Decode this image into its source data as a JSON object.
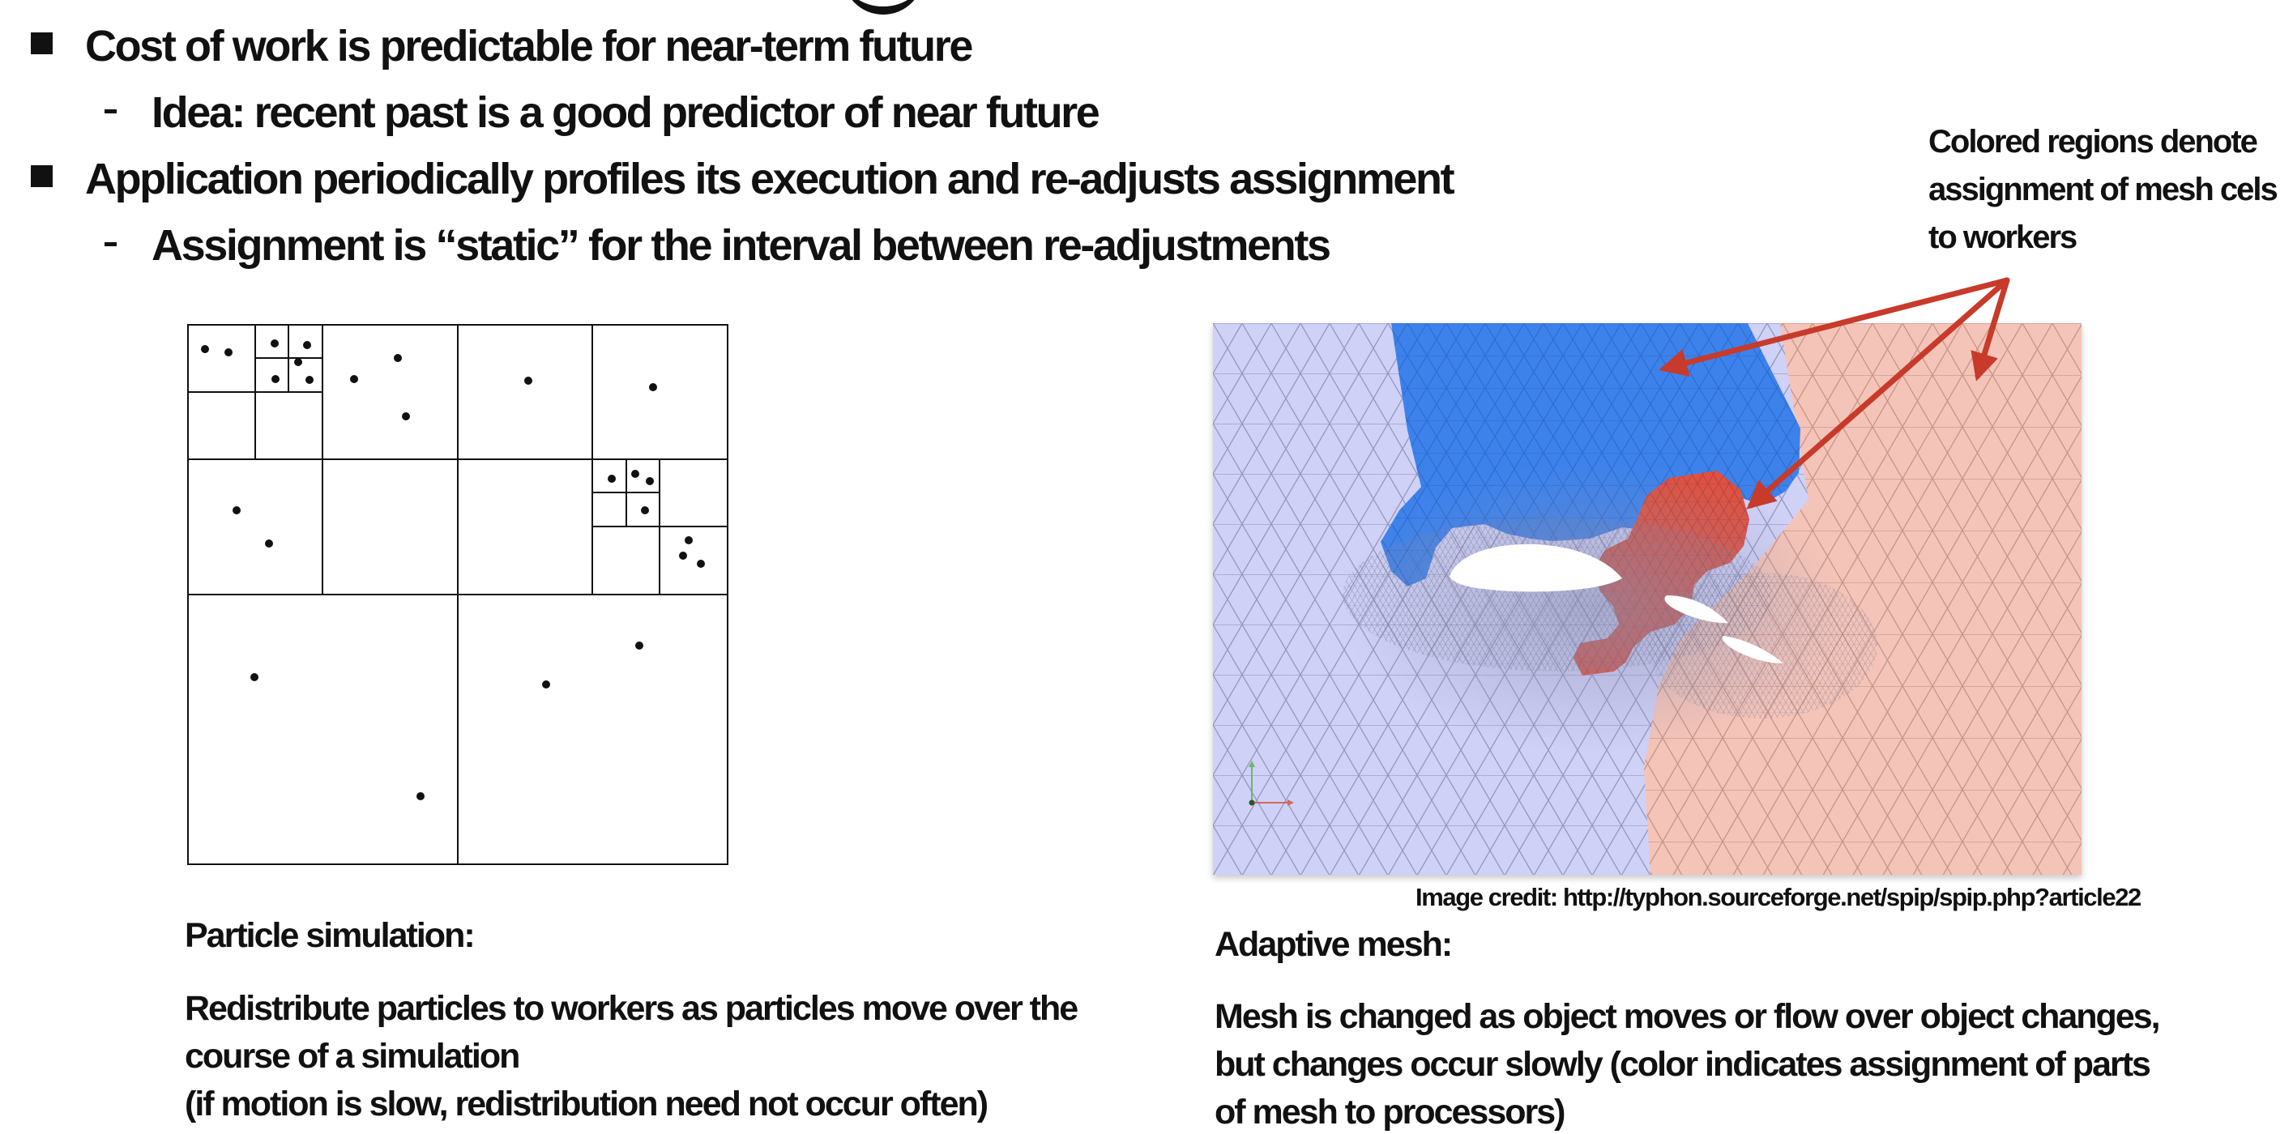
{
  "bullets": [
    {
      "level": 1,
      "text": "Cost of work is predictable for near-term future"
    },
    {
      "level": 2,
      "text": "Idea: recent past is a good predictor of near future"
    },
    {
      "level": 1,
      "text": "Application periodically profiles its execution and re-adjusts assignment"
    },
    {
      "level": 2,
      "text": "Assignment is “static” for the interval between re-adjustments"
    }
  ],
  "mesh_callout": "Colored regions denote\nassignment of mesh cels\nto workers",
  "image_credit": "Image credit: http://typhon.sourceforge.net/spip/spip.php?article22",
  "particle_caption": {
    "heading": "Particle simulation:",
    "lines": [
      "Redistribute particles to workers as particles move over the",
      "course of a simulation",
      "(if motion is slow, redistribution need not occur often)"
    ]
  },
  "mesh_caption": {
    "heading": "Adaptive mesh:",
    "lines": [
      "Mesh is changed as object moves or flow over object changes,",
      "but changes occur slowly (color indicates assignment of parts",
      "of mesh to processors)"
    ]
  },
  "colors": {
    "text": "#111111",
    "blue_region": "#3d82eb",
    "red_region": "#dd5242",
    "salmon_region": "#f5c4b8",
    "lavender_region": "#cfd1f7",
    "callout_arrow": "#c83a2a"
  },
  "icons": {
    "bullet_marker": "filled-square",
    "sub_bullet_marker": "dash",
    "mesh_axes": "xyz-axis-triad"
  }
}
